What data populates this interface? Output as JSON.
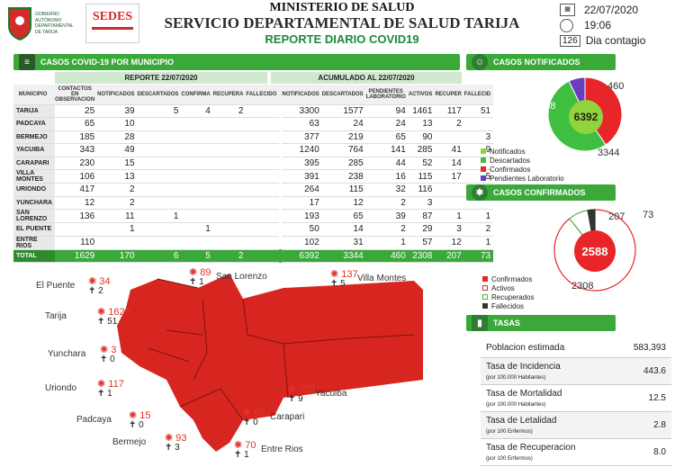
{
  "header": {
    "ministry": "MINISTERIO DE SALUD",
    "service": "SERVICIO DEPARTAMENTAL DE SALUD TARIJA",
    "report": "REPORTE DIARIO COVID19",
    "date": "22/07/2020",
    "time": "19:06",
    "day": "126",
    "day_label": "Dia contagio",
    "gov_logo": "GOBIERNO AUTÓNOMO DEPARTAMENTAL DE TARIJA",
    "sedes_logo": "SEDES"
  },
  "cases_table": {
    "title": "CASOS COVID-19 POR MUNICIPIO",
    "report_header": "REPORTE 22/07/2020",
    "acum_header": "ACUMULADO AL 22/07/2020",
    "confirmados_header": "CONFIRMADOS",
    "col_municipio": "MUNICIPIO",
    "cols_report": [
      "CONTACTOS EN OBSERVACION",
      "NOTIFICADOS",
      "DESCARTADOS",
      "CONFIRMA",
      "RECUPERA",
      "FALLECIDO"
    ],
    "cols_acum": [
      "NOTIFICADOS",
      "DESCARTADOS",
      "PENDIENTES LABORATORIO",
      "ACTIVOS",
      "RECUPER",
      "FALLECID"
    ],
    "rows": [
      {
        "m": "TARIJA",
        "v": [
          "25",
          "39",
          "5",
          "4",
          "2",
          "",
          "3300",
          "1577",
          "94",
          "1461",
          "117",
          "51"
        ]
      },
      {
        "m": "PADCAYA",
        "v": [
          "65",
          "10",
          "",
          "",
          "",
          "",
          "63",
          "24",
          "24",
          "13",
          "2",
          ""
        ]
      },
      {
        "m": "BERMEJO",
        "v": [
          "185",
          "28",
          "",
          "",
          "",
          "",
          "377",
          "219",
          "65",
          "90",
          "",
          "3"
        ]
      },
      {
        "m": "YACUIBA",
        "v": [
          "343",
          "49",
          "",
          "",
          "",
          "",
          "1240",
          "764",
          "141",
          "285",
          "41",
          "9"
        ]
      },
      {
        "m": "CARAPARI",
        "v": [
          "230",
          "15",
          "",
          "",
          "",
          "",
          "395",
          "285",
          "44",
          "52",
          "14",
          ""
        ]
      },
      {
        "m": "VILLA MONTES",
        "v": [
          "106",
          "13",
          "",
          "",
          "",
          "",
          "391",
          "238",
          "16",
          "115",
          "17",
          "5"
        ]
      },
      {
        "m": "URIONDO",
        "v": [
          "417",
          "2",
          "",
          "",
          "",
          "",
          "264",
          "115",
          "32",
          "116",
          "",
          "1"
        ]
      },
      {
        "m": "YUNCHARA",
        "v": [
          "12",
          "2",
          "",
          "",
          "",
          "",
          "17",
          "12",
          "2",
          "3",
          "",
          ""
        ]
      },
      {
        "m": "SAN LORENZO",
        "v": [
          "136",
          "11",
          "1",
          "",
          "",
          "",
          "193",
          "65",
          "39",
          "87",
          "1",
          "1"
        ]
      },
      {
        "m": "EL PUENTE",
        "v": [
          "",
          "1",
          "",
          "1",
          "",
          "",
          "50",
          "14",
          "2",
          "29",
          "3",
          "2"
        ]
      },
      {
        "m": "ENTRE RIOS",
        "v": [
          "110",
          "",
          "",
          "",
          "",
          "",
          "102",
          "31",
          "1",
          "57",
          "12",
          "1"
        ]
      }
    ],
    "total": {
      "m": "TOTAL",
      "v": [
        "1629",
        "170",
        "6",
        "5",
        "2",
        "",
        "6392",
        "3344",
        "460",
        "2308",
        "207",
        "73"
      ]
    }
  },
  "notificados": {
    "title": "CASOS NOTIFICADOS",
    "center": "6392",
    "lbl_conf": "2588",
    "lbl_desc": "3344",
    "lbl_pend": "460",
    "legend": [
      "Notificados",
      "Descartados",
      "Confirmados",
      "Pendientes Laboratorio"
    ],
    "colors": {
      "notificados": "#8ed43a",
      "descartados": "#3fbf3f",
      "confirmados": "#e8262a",
      "pendientes": "#6a3cc0"
    },
    "chart_data": {
      "type": "pie",
      "categories": [
        "Confirmados",
        "Descartados",
        "Pendientes Laboratorio"
      ],
      "values": [
        2588,
        3344,
        460
      ]
    }
  },
  "confirmados": {
    "title": "CASOS CONFIRMADOS",
    "center": "2588",
    "lbl_act": "2308",
    "lbl_rec": "207",
    "lbl_fal": "73",
    "legend": [
      "Confirmados",
      "Activos",
      "Recuperados",
      "Fallecidos"
    ],
    "chart_data": {
      "type": "pie",
      "categories": [
        "Activos",
        "Recuperados",
        "Fallecidos"
      ],
      "values": [
        2308,
        207,
        73
      ]
    }
  },
  "tasas": {
    "title": "TASAS",
    "rows": [
      {
        "label": "Poblacion estimada",
        "sub": "",
        "value": "583,393"
      },
      {
        "label": "Tasa de Incidencia",
        "sub": "(por 100.000 Habitantes)",
        "value": "443.6"
      },
      {
        "label": "Tasa de Mortalidad",
        "sub": "(por 100.000 Habitantes)",
        "value": "12.5"
      },
      {
        "label": "Tasa de Letalidad",
        "sub": "(por 100 Enfermos)",
        "value": "2.8"
      },
      {
        "label": "Tasa de Recuperacion",
        "sub": "(por 100 Enfermos)",
        "value": "8.0"
      }
    ]
  },
  "map": {
    "places": [
      {
        "name": "El Puente",
        "cases": "34",
        "dead": "2"
      },
      {
        "name": "San Lorenzo",
        "cases": "89",
        "dead": "1"
      },
      {
        "name": "Villa Montes",
        "cases": "137",
        "dead": "5"
      },
      {
        "name": "Tarija",
        "cases": "1629",
        "dead": "51"
      },
      {
        "name": "Yunchara",
        "cases": "3",
        "dead": "0"
      },
      {
        "name": "Uriondo",
        "cases": "117",
        "dead": "1"
      },
      {
        "name": "Yacuiba",
        "cases": "335",
        "dead": "9"
      },
      {
        "name": "Padcaya",
        "cases": "15",
        "dead": "0"
      },
      {
        "name": "Carapari",
        "cases": "66",
        "dead": "0"
      },
      {
        "name": "Bermejo",
        "cases": "93",
        "dead": "3"
      },
      {
        "name": "Entre Rios",
        "cases": "70",
        "dead": "1"
      }
    ]
  }
}
